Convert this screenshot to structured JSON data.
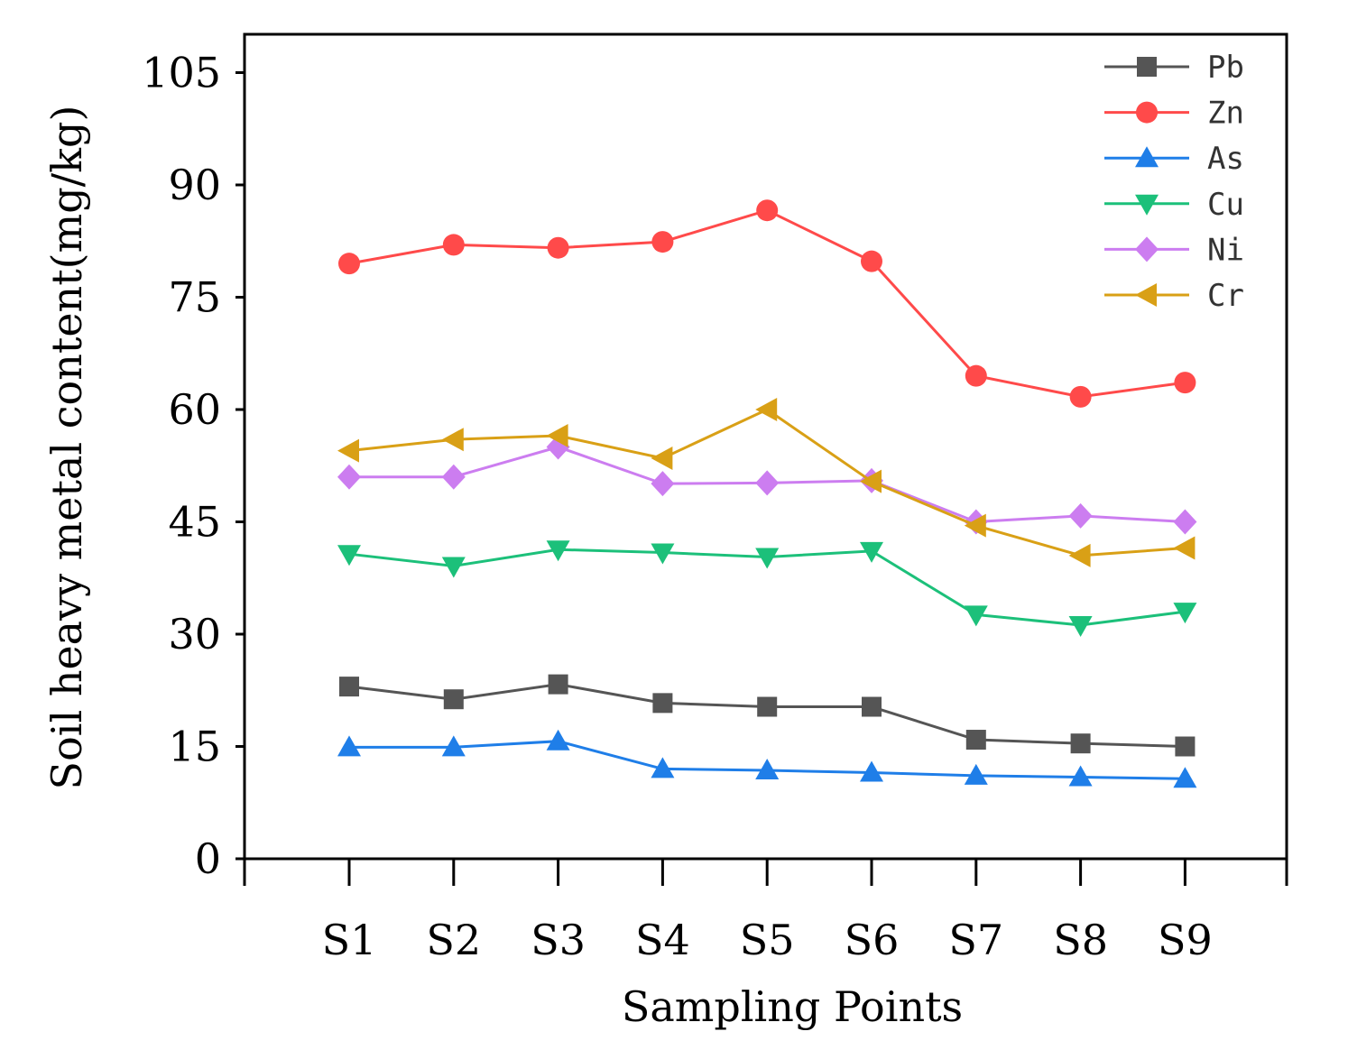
{
  "chart_data": {
    "type": "line",
    "title": "",
    "xlabel": "Sampling Points",
    "ylabel": "Soil heavy metal content(mg/kg)",
    "categories": [
      "S1",
      "S2",
      "S3",
      "S4",
      "S5",
      "S6",
      "S7",
      "S8",
      "S9"
    ],
    "ylim": [
      0,
      110
    ],
    "yticks": [
      0,
      15,
      30,
      45,
      60,
      75,
      90,
      105
    ],
    "grid": false,
    "legend_position": "top-right",
    "series": [
      {
        "name": "Pb",
        "color": "#555555",
        "marker": "square",
        "values": [
          23.0,
          21.3,
          23.3,
          20.8,
          20.3,
          20.3,
          15.9,
          15.4,
          15.0
        ]
      },
      {
        "name": "Zn",
        "color": "#ff4a4a",
        "marker": "circle",
        "values": [
          79.5,
          82.0,
          81.6,
          82.4,
          86.6,
          79.8,
          64.5,
          61.7,
          63.6
        ]
      },
      {
        "name": "As",
        "color": "#1f7ee8",
        "marker": "triangle-up",
        "values": [
          14.9,
          14.9,
          15.7,
          12.0,
          11.8,
          11.5,
          11.1,
          10.9,
          10.7
        ]
      },
      {
        "name": "Cu",
        "color": "#1cc07a",
        "marker": "triangle-down",
        "values": [
          40.7,
          39.1,
          41.3,
          40.9,
          40.3,
          41.1,
          32.6,
          31.2,
          33.0
        ]
      },
      {
        "name": "Ni",
        "color": "#cc7df0",
        "marker": "diamond",
        "values": [
          51.0,
          51.0,
          55.0,
          50.1,
          50.2,
          50.5,
          45.0,
          45.8,
          45.0
        ]
      },
      {
        "name": "Cr",
        "color": "#d9a016",
        "marker": "triangle-left",
        "values": [
          54.5,
          56.0,
          56.5,
          53.5,
          60.0,
          50.4,
          44.5,
          40.5,
          41.5
        ]
      }
    ]
  }
}
